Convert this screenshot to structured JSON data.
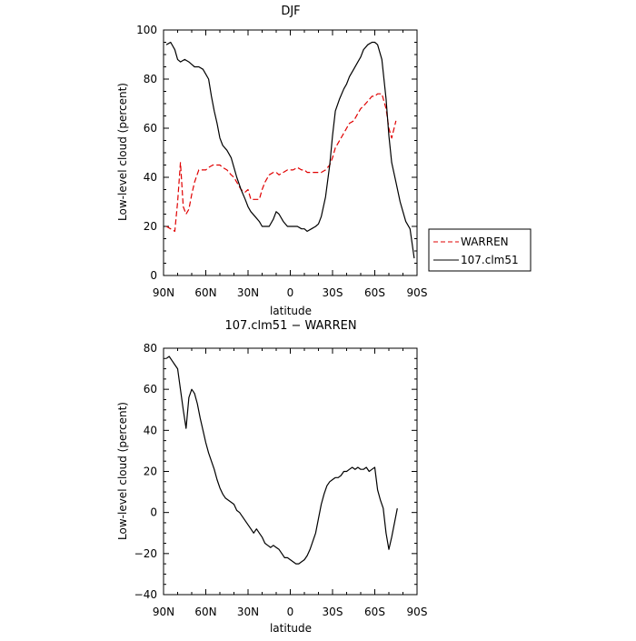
{
  "chart_data": [
    {
      "type": "line",
      "title": "DJF",
      "xlabel": "latitude",
      "ylabel": "Low-level cloud (percent)",
      "xlim": [
        90,
        -90
      ],
      "ylim": [
        0,
        100
      ],
      "xticks": [
        90,
        60,
        30,
        0,
        -30,
        -60,
        -90
      ],
      "xtick_labels": [
        "90N",
        "60N",
        "30N",
        "0",
        "30S",
        "60S",
        "90S"
      ],
      "yticks": [
        0,
        20,
        40,
        60,
        80,
        100
      ],
      "ytick_labels": [
        "0",
        "20",
        "40",
        "60",
        "80",
        "100"
      ],
      "grid": false,
      "legend_position": "right",
      "series": [
        {
          "name": "WARREN",
          "color": "#e00000",
          "dash": "dashed",
          "x": [
            88,
            85,
            82,
            80,
            78,
            76,
            74,
            72,
            70,
            68,
            65,
            62,
            60,
            58,
            55,
            52,
            50,
            48,
            45,
            42,
            40,
            38,
            35,
            32,
            30,
            28,
            25,
            22,
            20,
            18,
            15,
            12,
            10,
            8,
            5,
            2,
            0,
            -2,
            -5,
            -8,
            -10,
            -12,
            -15,
            -18,
            -20,
            -22,
            -25,
            -28,
            -30,
            -32,
            -35,
            -38,
            -40,
            -42,
            -45,
            -48,
            -50,
            -52,
            -55,
            -58,
            -60,
            -62,
            -65,
            -68,
            -70,
            -72,
            -75
          ],
          "y": [
            20,
            19,
            18,
            30,
            46,
            28,
            25,
            27,
            33,
            38,
            43,
            43,
            43,
            44,
            45,
            45,
            45,
            44,
            43,
            41,
            40,
            38,
            35,
            34,
            35,
            31,
            31,
            31,
            35,
            38,
            41,
            42,
            42,
            41,
            42,
            43,
            43,
            43,
            44,
            43,
            43,
            42,
            42,
            42,
            42,
            42,
            43,
            45,
            48,
            52,
            55,
            58,
            60,
            62,
            63,
            66,
            68,
            69,
            71,
            73,
            73,
            74,
            74,
            68,
            60,
            56,
            63
          ]
        },
        {
          "name": "107.clm51",
          "color": "#000000",
          "dash": "solid",
          "x": [
            88,
            85,
            82,
            80,
            78,
            75,
            72,
            70,
            68,
            65,
            62,
            60,
            58,
            56,
            54,
            52,
            50,
            48,
            45,
            42,
            40,
            38,
            35,
            32,
            30,
            28,
            25,
            22,
            20,
            18,
            15,
            12,
            10,
            8,
            5,
            2,
            0,
            -2,
            -5,
            -8,
            -10,
            -12,
            -15,
            -18,
            -20,
            -22,
            -25,
            -28,
            -30,
            -32,
            -35,
            -38,
            -40,
            -42,
            -45,
            -48,
            -50,
            -52,
            -55,
            -58,
            -60,
            -62,
            -65,
            -68,
            -70,
            -72,
            -75,
            -78,
            -80,
            -82,
            -85,
            -88
          ],
          "y": [
            94,
            95,
            92,
            88,
            87,
            88,
            87,
            86,
            85,
            85,
            84,
            82,
            80,
            73,
            67,
            62,
            56,
            53,
            51,
            48,
            44,
            40,
            35,
            31,
            28,
            26,
            24,
            22,
            20,
            20,
            20,
            23,
            26,
            25,
            22,
            20,
            20,
            20,
            20,
            19,
            19,
            18,
            19,
            20,
            21,
            24,
            32,
            45,
            57,
            67,
            72,
            76,
            78,
            81,
            84,
            87,
            89,
            92,
            94,
            95,
            95,
            94,
            88,
            72,
            57,
            46,
            38,
            30,
            26,
            22,
            19,
            7
          ]
        }
      ]
    },
    {
      "type": "line",
      "title": "107.clm51 − WARREN",
      "xlabel": "latitude",
      "ylabel": "Low-level cloud (percent)",
      "xlim": [
        90,
        -90
      ],
      "ylim": [
        -40,
        80
      ],
      "xticks": [
        90,
        60,
        30,
        0,
        -30,
        -60,
        -90
      ],
      "xtick_labels": [
        "90N",
        "60N",
        "30N",
        "0",
        "30S",
        "60S",
        "90S"
      ],
      "yticks": [
        -40,
        -20,
        0,
        20,
        40,
        60,
        80
      ],
      "ytick_labels": [
        "−40",
        "−20",
        "0",
        "20",
        "40",
        "60",
        "80"
      ],
      "grid": false,
      "series": [
        {
          "color": "#000000",
          "dash": "solid",
          "x": [
            88,
            86,
            84,
            82,
            80,
            78,
            76,
            74,
            72,
            70,
            68,
            66,
            64,
            62,
            60,
            58,
            56,
            54,
            52,
            50,
            48,
            46,
            44,
            42,
            40,
            38,
            36,
            34,
            32,
            30,
            28,
            26,
            24,
            22,
            20,
            18,
            16,
            14,
            12,
            10,
            8,
            6,
            4,
            2,
            0,
            -2,
            -4,
            -6,
            -8,
            -10,
            -12,
            -14,
            -16,
            -18,
            -20,
            -22,
            -24,
            -26,
            -28,
            -30,
            -32,
            -34,
            -36,
            -38,
            -40,
            -42,
            -44,
            -46,
            -48,
            -50,
            -52,
            -54,
            -56,
            -58,
            -60,
            -62,
            -64,
            -66,
            -68,
            -70,
            -72,
            -74,
            -76
          ],
          "y": [
            75,
            76,
            74,
            72,
            70,
            60,
            50,
            41,
            56,
            60,
            58,
            53,
            46,
            40,
            34,
            29,
            25,
            21,
            16,
            12,
            9,
            7,
            6,
            5,
            4,
            1,
            0,
            -2,
            -4,
            -6,
            -8,
            -10,
            -8,
            -10,
            -12,
            -15,
            -16,
            -17,
            -16,
            -17,
            -18,
            -20,
            -22,
            -22,
            -23,
            -24,
            -25,
            -25,
            -24,
            -23,
            -21,
            -18,
            -14,
            -10,
            -3,
            4,
            9,
            13,
            15,
            16,
            17,
            17,
            18,
            20,
            20,
            21,
            22,
            21,
            22,
            21,
            21,
            22,
            20,
            21,
            22,
            11,
            6,
            2,
            -10,
            -18,
            -12,
            -5,
            2
          ]
        }
      ]
    }
  ]
}
